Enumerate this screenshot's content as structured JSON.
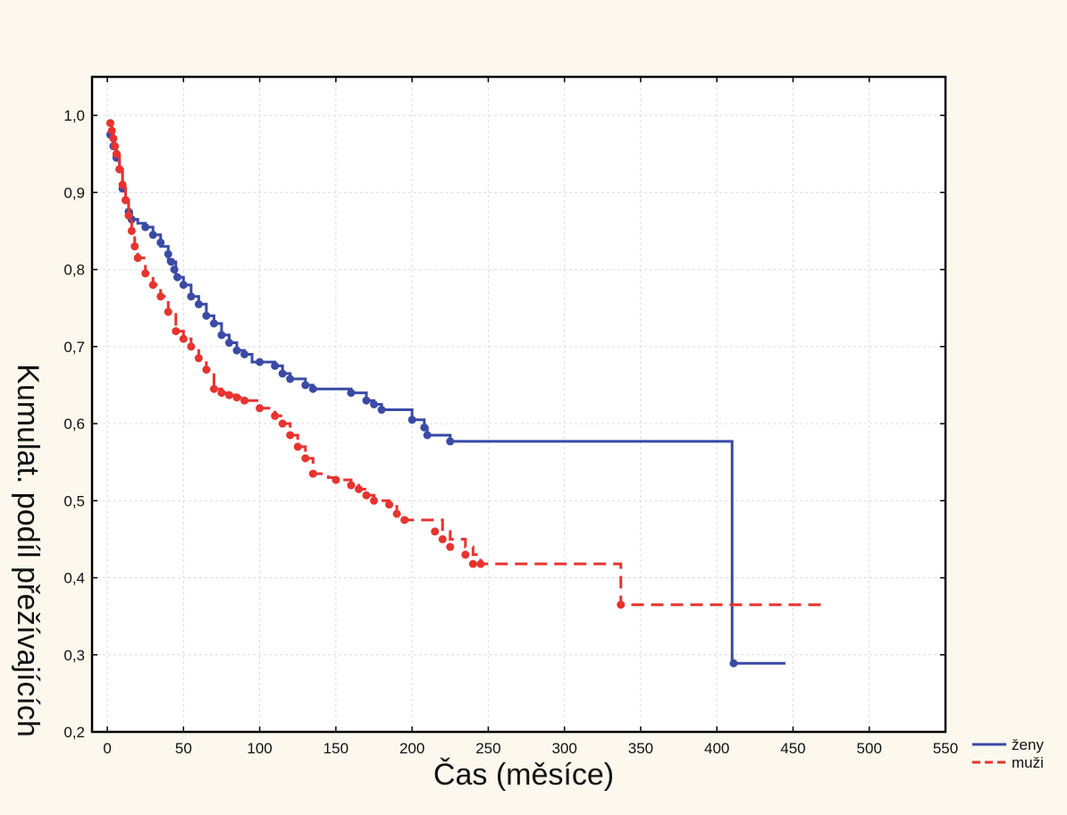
{
  "chart_data": {
    "type": "line",
    "subtype": "kaplan-meier step curve",
    "title": "",
    "xlabel": "Čas (měsíce)",
    "ylabel": "Kumulat. podíl přežívajících",
    "xlim": [
      -10,
      550
    ],
    "ylim": [
      0.2,
      1.05
    ],
    "xticks": [
      0,
      50,
      100,
      150,
      200,
      250,
      300,
      350,
      400,
      450,
      500,
      550
    ],
    "xtick_labels": [
      "0",
      "50",
      "100",
      "150",
      "200",
      "250",
      "300",
      "350",
      "400",
      "450",
      "500",
      "550"
    ],
    "yticks": [
      0.2,
      0.3,
      0.4,
      0.5,
      0.6,
      0.7,
      0.8,
      0.9,
      1.0
    ],
    "ytick_labels": [
      "0,2",
      "0,3",
      "0,4",
      "0,5",
      "0,6",
      "0,7",
      "0,8",
      "0,9",
      "1,0"
    ],
    "grid": true,
    "legend_position": "bottom-right outside",
    "series": [
      {
        "name": "ženy",
        "color": "#3a4aa6",
        "line_style": "solid",
        "x": [
          2,
          4,
          6,
          8,
          10,
          12,
          14,
          16,
          20,
          25,
          30,
          35,
          40,
          45,
          50,
          55,
          60,
          65,
          70,
          75,
          80,
          85,
          90,
          95,
          110,
          115,
          120,
          130,
          135,
          160,
          170,
          175,
          180,
          200,
          208,
          210,
          225,
          410,
          410,
          445
        ],
        "y": [
          0.975,
          0.96,
          0.945,
          0.93,
          0.905,
          0.89,
          0.875,
          0.865,
          0.86,
          0.855,
          0.845,
          0.83,
          0.81,
          0.79,
          0.78,
          0.765,
          0.755,
          0.74,
          0.73,
          0.715,
          0.705,
          0.695,
          0.69,
          0.68,
          0.675,
          0.665,
          0.658,
          0.65,
          0.645,
          0.64,
          0.63,
          0.625,
          0.618,
          0.605,
          0.595,
          0.585,
          0.577,
          0.577,
          0.289,
          0.289
        ],
        "event_x": [
          2,
          4,
          6,
          8,
          10,
          12,
          14,
          16,
          25,
          30,
          35,
          40,
          42,
          44,
          46,
          50,
          55,
          60,
          65,
          70,
          75,
          80,
          85,
          90,
          100,
          110,
          115,
          120,
          130,
          135,
          160,
          170,
          175,
          180,
          200,
          208,
          210,
          225,
          411
        ],
        "event_y": [
          0.975,
          0.96,
          0.945,
          0.93,
          0.905,
          0.89,
          0.875,
          0.865,
          0.855,
          0.845,
          0.835,
          0.82,
          0.81,
          0.8,
          0.79,
          0.78,
          0.765,
          0.755,
          0.74,
          0.73,
          0.715,
          0.705,
          0.695,
          0.69,
          0.68,
          0.675,
          0.665,
          0.658,
          0.65,
          0.645,
          0.64,
          0.63,
          0.625,
          0.618,
          0.605,
          0.595,
          0.585,
          0.577,
          0.289
        ]
      },
      {
        "name": "muži",
        "color": "#e8332e",
        "line_style": "dashed",
        "x": [
          2,
          3,
          4,
          5,
          6,
          8,
          10,
          12,
          14,
          16,
          18,
          20,
          25,
          30,
          35,
          40,
          45,
          50,
          55,
          60,
          65,
          70,
          75,
          80,
          85,
          90,
          100,
          110,
          115,
          120,
          125,
          130,
          135,
          145,
          150,
          160,
          165,
          170,
          175,
          185,
          190,
          195,
          215,
          220,
          225,
          235,
          240,
          245,
          337,
          337,
          470
        ],
        "y": [
          0.99,
          0.98,
          0.97,
          0.96,
          0.95,
          0.93,
          0.91,
          0.89,
          0.87,
          0.85,
          0.83,
          0.815,
          0.795,
          0.78,
          0.765,
          0.745,
          0.72,
          0.71,
          0.7,
          0.685,
          0.67,
          0.645,
          0.64,
          0.637,
          0.634,
          0.63,
          0.62,
          0.61,
          0.6,
          0.585,
          0.57,
          0.555,
          0.535,
          0.53,
          0.527,
          0.52,
          0.515,
          0.507,
          0.5,
          0.495,
          0.483,
          0.475,
          0.475,
          0.46,
          0.45,
          0.44,
          0.43,
          0.418,
          0.418,
          0.365,
          0.365
        ],
        "event_x": [
          2,
          3,
          4,
          5,
          6,
          8,
          10,
          12,
          14,
          16,
          18,
          20,
          25,
          30,
          35,
          40,
          45,
          50,
          55,
          60,
          65,
          70,
          75,
          80,
          85,
          90,
          100,
          110,
          115,
          120,
          125,
          130,
          135,
          150,
          160,
          165,
          170,
          175,
          185,
          190,
          195,
          215,
          220,
          225,
          235,
          240,
          245,
          337
        ],
        "event_y": [
          0.99,
          0.98,
          0.97,
          0.96,
          0.95,
          0.93,
          0.91,
          0.89,
          0.87,
          0.85,
          0.83,
          0.815,
          0.795,
          0.78,
          0.765,
          0.745,
          0.72,
          0.71,
          0.7,
          0.685,
          0.67,
          0.645,
          0.64,
          0.637,
          0.634,
          0.63,
          0.62,
          0.61,
          0.6,
          0.585,
          0.57,
          0.555,
          0.535,
          0.527,
          0.52,
          0.515,
          0.507,
          0.5,
          0.495,
          0.483,
          0.475,
          0.46,
          0.45,
          0.44,
          0.43,
          0.418,
          0.418,
          0.365
        ]
      }
    ]
  }
}
